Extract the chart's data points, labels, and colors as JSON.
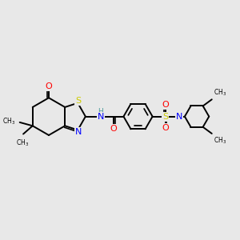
{
  "background_color": "#e8e8e8",
  "atom_colors": {
    "C": "#000000",
    "H": "#4a9999",
    "N": "#0000ff",
    "O": "#ff0000",
    "S": "#cccc00"
  },
  "bond_color": "#000000",
  "bond_width": 1.4,
  "figsize": [
    3.0,
    3.0
  ],
  "dpi": 100
}
